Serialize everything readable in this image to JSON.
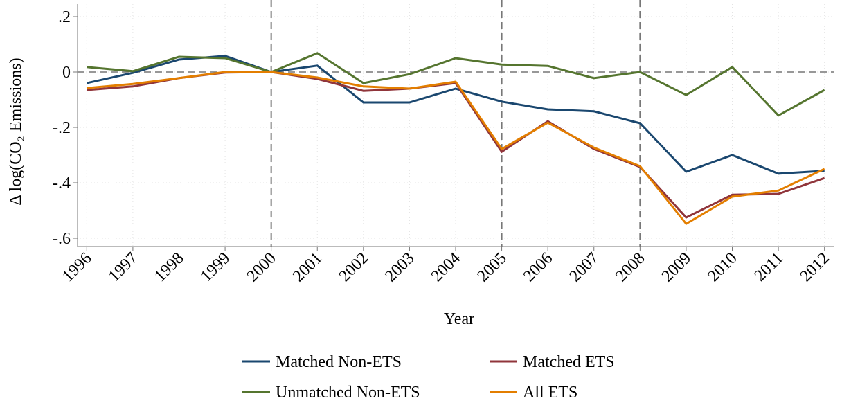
{
  "chart_data": {
    "type": "line",
    "x_label": "Year",
    "y_label": "Δ log(CO₂ Emissions)",
    "x": [
      1996,
      1997,
      1998,
      1999,
      2000,
      2001,
      2002,
      2003,
      2004,
      2005,
      2006,
      2007,
      2008,
      2009,
      2010,
      2011,
      2012
    ],
    "series": [
      {
        "name": "Matched Non-ETS",
        "color": "#1a476f",
        "values": [
          -0.04,
          -0.003,
          0.045,
          0.058,
          0,
          0.023,
          -0.11,
          -0.11,
          -0.06,
          -0.107,
          -0.135,
          -0.142,
          -0.185,
          -0.36,
          -0.3,
          -0.367,
          -0.357
        ]
      },
      {
        "name": "Matched ETS",
        "color": "#90353b",
        "values": [
          -0.065,
          -0.052,
          -0.022,
          -0.002,
          0,
          -0.025,
          -0.068,
          -0.06,
          -0.04,
          -0.288,
          -0.178,
          -0.278,
          -0.343,
          -0.525,
          -0.443,
          -0.44,
          -0.383
        ]
      },
      {
        "name": "Unmatched Non-ETS",
        "color": "#55752f",
        "values": [
          0.018,
          0.003,
          0.055,
          0.05,
          0,
          0.068,
          -0.04,
          -0.008,
          0.05,
          0.027,
          0.022,
          -0.022,
          0,
          -0.083,
          0.018,
          -0.157,
          -0.065
        ]
      },
      {
        "name": "All ETS",
        "color": "#e37e00",
        "values": [
          -0.058,
          -0.043,
          -0.022,
          0,
          0,
          -0.02,
          -0.052,
          -0.06,
          -0.035,
          -0.278,
          -0.183,
          -0.273,
          -0.34,
          -0.548,
          -0.45,
          -0.428,
          -0.35
        ]
      }
    ],
    "xlim": [
      1995.8,
      2012.2
    ],
    "xticks": [
      1996,
      1997,
      1998,
      1999,
      2000,
      2001,
      2002,
      2003,
      2004,
      2005,
      2006,
      2007,
      2008,
      2009,
      2010,
      2011,
      2012
    ],
    "ylim": [
      -0.63,
      0.245
    ],
    "yticks": [
      {
        "value": 0.2,
        "label": ".2"
      },
      0,
      {
        "value": -0.2,
        "label": "-.2"
      },
      {
        "value": -0.4,
        "label": "-.4"
      },
      {
        "value": -0.6,
        "label": "-.6"
      }
    ],
    "vlines": [
      2000,
      2005,
      2008
    ],
    "hlines": [
      0
    ],
    "grid": true,
    "legend": "bottom"
  }
}
